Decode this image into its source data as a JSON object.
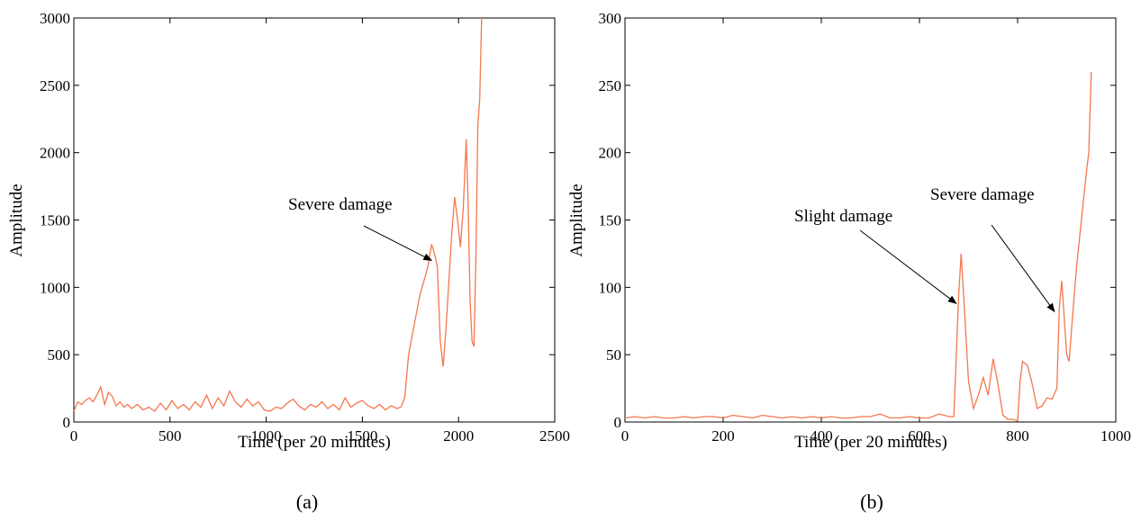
{
  "chart_data": [
    {
      "type": "line",
      "panel_label": "(a)",
      "xlabel": "Time (per 20 minutes)",
      "ylabel": "Amplitude",
      "xlim": [
        0,
        2500
      ],
      "ylim": [
        0,
        3000
      ],
      "xticks": [
        0,
        500,
        1000,
        1500,
        2000,
        2500
      ],
      "yticks": [
        0,
        500,
        1000,
        1500,
        2000,
        2500,
        3000
      ],
      "line_color": "#f4774f",
      "annotations": [
        {
          "text": "Severe damage",
          "point": [
            1860,
            1200
          ]
        }
      ],
      "series": [
        {
          "x": [
            0,
            20,
            40,
            60,
            80,
            100,
            120,
            140,
            160,
            180,
            200,
            220,
            240,
            260,
            280,
            300,
            330,
            360,
            390,
            420,
            450,
            480,
            510,
            540,
            570,
            600,
            630,
            660,
            690,
            720,
            750,
            780,
            810,
            840,
            870,
            900,
            930,
            960,
            990,
            1020,
            1050,
            1080,
            1110,
            1140,
            1170,
            1200,
            1230,
            1260,
            1290,
            1320,
            1350,
            1380,
            1410,
            1440,
            1470,
            1500,
            1530,
            1560,
            1590,
            1620,
            1650,
            1680,
            1700,
            1720,
            1740,
            1760,
            1780,
            1800,
            1820,
            1840,
            1860,
            1875,
            1890,
            1905,
            1920,
            1935,
            1950,
            1965,
            1980,
            1995,
            2010,
            2025,
            2040,
            2050,
            2060,
            2070,
            2080,
            2090,
            2100,
            2110,
            2120
          ],
          "y": [
            80,
            150,
            130,
            160,
            180,
            150,
            200,
            260,
            130,
            220,
            190,
            120,
            150,
            110,
            130,
            100,
            130,
            90,
            110,
            80,
            140,
            90,
            160,
            100,
            130,
            90,
            150,
            110,
            200,
            100,
            180,
            120,
            230,
            150,
            110,
            170,
            120,
            150,
            90,
            80,
            110,
            100,
            140,
            170,
            120,
            90,
            130,
            110,
            150,
            100,
            130,
            90,
            180,
            110,
            140,
            160,
            120,
            100,
            130,
            90,
            120,
            100,
            110,
            180,
            500,
            650,
            800,
            950,
            1050,
            1150,
            1320,
            1250,
            1150,
            600,
            410,
            700,
            1050,
            1400,
            1670,
            1500,
            1300,
            1600,
            2100,
            1600,
            900,
            600,
            560,
            1200,
            2200,
            2400,
            3000
          ]
        }
      ]
    },
    {
      "type": "line",
      "panel_label": "(b)",
      "xlabel": "Time (per 20 minutes)",
      "ylabel": "Amplitude",
      "xlim": [
        0,
        1000
      ],
      "ylim": [
        0,
        300
      ],
      "xticks": [
        0,
        200,
        400,
        600,
        800,
        1000
      ],
      "yticks": [
        0,
        50,
        100,
        150,
        200,
        250,
        300
      ],
      "line_color": "#f4774f",
      "annotations": [
        {
          "text": "Slight damage",
          "point": [
            675,
            88
          ]
        },
        {
          "text": "Severe damage",
          "point": [
            875,
            82
          ]
        }
      ],
      "series": [
        {
          "x": [
            0,
            20,
            40,
            60,
            80,
            100,
            120,
            140,
            160,
            180,
            200,
            220,
            240,
            260,
            280,
            300,
            320,
            340,
            360,
            380,
            400,
            420,
            440,
            460,
            480,
            500,
            520,
            540,
            560,
            580,
            600,
            620,
            640,
            660,
            670,
            680,
            685,
            690,
            700,
            710,
            720,
            730,
            740,
            750,
            760,
            770,
            780,
            790,
            800,
            805,
            810,
            820,
            830,
            840,
            850,
            860,
            870,
            880,
            885,
            890,
            900,
            905,
            910,
            920,
            930,
            940,
            945,
            950
          ],
          "y": [
            3,
            4,
            3,
            4,
            3,
            3,
            4,
            3,
            4,
            4,
            3,
            5,
            4,
            3,
            5,
            4,
            3,
            4,
            3,
            4,
            3,
            4,
            3,
            3,
            4,
            4,
            6,
            3,
            3,
            4,
            3,
            3,
            6,
            4,
            4,
            95,
            125,
            95,
            30,
            10,
            20,
            33,
            20,
            47,
            28,
            5,
            2,
            2,
            1,
            30,
            45,
            42,
            28,
            10,
            12,
            18,
            17,
            25,
            85,
            105,
            50,
            45,
            70,
            115,
            150,
            185,
            200,
            260
          ]
        }
      ]
    }
  ]
}
